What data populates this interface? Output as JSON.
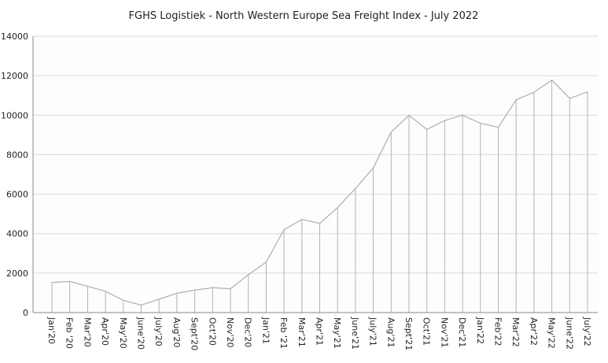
{
  "chart_data": {
    "type": "line",
    "title": "FGHS Logistiek - North Western Europe Sea Freight Index - July 2022",
    "xlabel": "",
    "ylabel": "",
    "ylim": [
      0,
      14000
    ],
    "yticks": [
      0,
      2000,
      4000,
      6000,
      8000,
      10000,
      12000,
      14000
    ],
    "grid": true,
    "drop_lines": true,
    "categories": [
      "Jan'20",
      "Feb '20",
      "Mar'20",
      "Apr'20",
      "May'20",
      "June'20",
      "July'20",
      "Aug'20",
      "Sept'20",
      "Oct'20",
      "Nov'20",
      "Dec'20",
      "Jan'21",
      "Feb '21",
      "Mar'21",
      "Apr'21",
      "May'21",
      "June'21",
      "July'21",
      "Aug'21",
      "Sept'21",
      "Oct'21",
      "Nov'21",
      "Dec'21",
      "Jan'22",
      "Feb'22",
      "Mar'22",
      "Apr'22",
      "May'22",
      "June'22",
      "July'22"
    ],
    "series": [
      {
        "name": "Sea Freight Index",
        "color": "#b3b3b3",
        "values": [
          1520,
          1580,
          1330,
          1080,
          620,
          380,
          680,
          980,
          1140,
          1260,
          1210,
          1920,
          2560,
          4200,
          4720,
          4520,
          5320,
          6290,
          7330,
          9150,
          9990,
          9280,
          9730,
          10000,
          9590,
          9390,
          10780,
          11160,
          11780,
          10850,
          11180
        ]
      }
    ]
  }
}
